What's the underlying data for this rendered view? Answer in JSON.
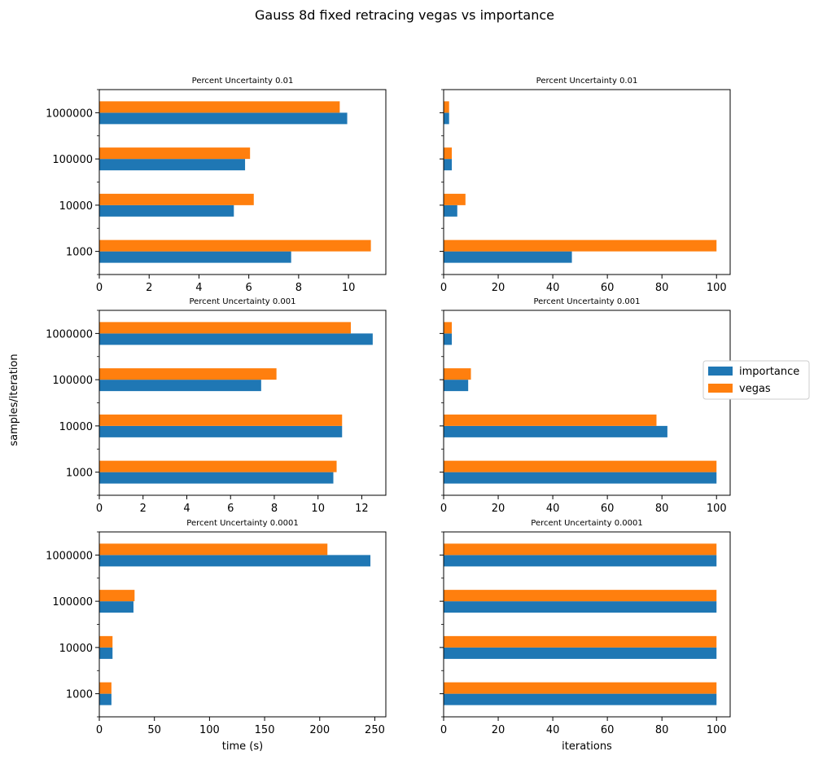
{
  "figure": {
    "title": "Gauss 8d fixed retracing vegas vs importance",
    "ylabel": "samples/iteration",
    "legend": [
      {
        "label": "importance",
        "color": "#1f77b4"
      },
      {
        "label": "vegas",
        "color": "#ff7f0e"
      }
    ],
    "legend_position": "right-center"
  },
  "chart_data": [
    {
      "type": "bar",
      "orientation": "horizontal",
      "title": "Percent Uncertainty 0.01",
      "xlabel": "",
      "categories": [
        "1000",
        "10000",
        "100000",
        "1000000"
      ],
      "xlim": [
        0,
        11.5
      ],
      "xticks": [
        0,
        2,
        4,
        6,
        8,
        10
      ],
      "series": [
        {
          "name": "importance",
          "color": "#1f77b4",
          "values": [
            7.7,
            5.4,
            5.85,
            9.95
          ]
        },
        {
          "name": "vegas",
          "color": "#ff7f0e",
          "values": [
            10.9,
            6.2,
            6.05,
            9.65
          ]
        }
      ]
    },
    {
      "type": "bar",
      "orientation": "horizontal",
      "title": "Percent Uncertainty 0.01",
      "xlabel": "",
      "categories": [
        "1000",
        "10000",
        "100000",
        "1000000"
      ],
      "xlim": [
        0,
        105
      ],
      "xticks": [
        0,
        20,
        40,
        60,
        80,
        100
      ],
      "series": [
        {
          "name": "importance",
          "color": "#1f77b4",
          "values": [
            47,
            5,
            3,
            2
          ]
        },
        {
          "name": "vegas",
          "color": "#ff7f0e",
          "values": [
            100,
            8,
            3,
            2
          ]
        }
      ]
    },
    {
      "type": "bar",
      "orientation": "horizontal",
      "title": "Percent Uncertainty 0.001",
      "xlabel": "",
      "categories": [
        "1000",
        "10000",
        "100000",
        "1000000"
      ],
      "xlim": [
        0,
        13.1
      ],
      "xticks": [
        0,
        2,
        4,
        6,
        8,
        10,
        12
      ],
      "series": [
        {
          "name": "importance",
          "color": "#1f77b4",
          "values": [
            10.7,
            11.1,
            7.4,
            12.5
          ]
        },
        {
          "name": "vegas",
          "color": "#ff7f0e",
          "values": [
            10.85,
            11.1,
            8.1,
            11.5
          ]
        }
      ]
    },
    {
      "type": "bar",
      "orientation": "horizontal",
      "title": "Percent Uncertainty 0.001",
      "xlabel": "",
      "categories": [
        "1000",
        "10000",
        "100000",
        "1000000"
      ],
      "xlim": [
        0,
        105
      ],
      "xticks": [
        0,
        20,
        40,
        60,
        80,
        100
      ],
      "series": [
        {
          "name": "importance",
          "color": "#1f77b4",
          "values": [
            100,
            82,
            9,
            3
          ]
        },
        {
          "name": "vegas",
          "color": "#ff7f0e",
          "values": [
            100,
            78,
            10,
            3
          ]
        }
      ]
    },
    {
      "type": "bar",
      "orientation": "horizontal",
      "title": "Percent Uncertainty 0.0001",
      "xlabel": "time (s)",
      "categories": [
        "1000",
        "10000",
        "100000",
        "1000000"
      ],
      "xlim": [
        0,
        260
      ],
      "xticks": [
        0,
        50,
        100,
        150,
        200,
        250
      ],
      "series": [
        {
          "name": "importance",
          "color": "#1f77b4",
          "values": [
            11,
            12,
            31,
            246
          ]
        },
        {
          "name": "vegas",
          "color": "#ff7f0e",
          "values": [
            11,
            12,
            32,
            207
          ]
        }
      ]
    },
    {
      "type": "bar",
      "orientation": "horizontal",
      "title": "Percent Uncertainty 0.0001",
      "xlabel": "iterations",
      "categories": [
        "1000",
        "10000",
        "100000",
        "1000000"
      ],
      "xlim": [
        0,
        105
      ],
      "xticks": [
        0,
        20,
        40,
        60,
        80,
        100
      ],
      "series": [
        {
          "name": "importance",
          "color": "#1f77b4",
          "values": [
            100,
            100,
            100,
            100
          ]
        },
        {
          "name": "vegas",
          "color": "#ff7f0e",
          "values": [
            100,
            100,
            100,
            100
          ]
        }
      ]
    }
  ]
}
